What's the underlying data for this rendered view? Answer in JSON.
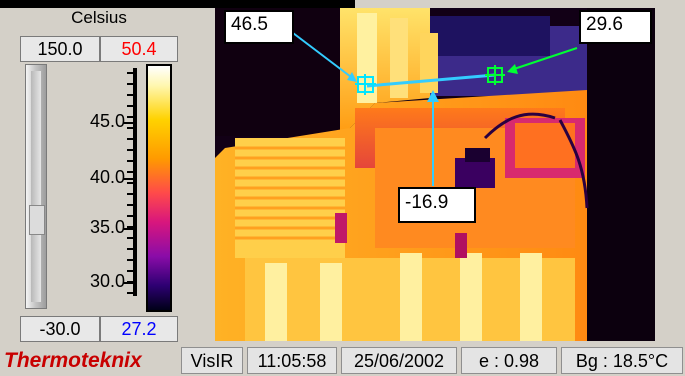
{
  "scale": {
    "unit": "Celsius",
    "max_value": "150.0",
    "current_max": "50.4",
    "min_value": "-30.0",
    "current_min": "27.2",
    "tick_labels": [
      "45.0",
      "40.0",
      "35.0",
      "30.0"
    ]
  },
  "measurements": {
    "spot1": "46.5",
    "spot2": "29.6",
    "line": "-16.9"
  },
  "status_bar": {
    "brand": "Thermoteknix",
    "mode": "VisIR",
    "time": "11:05:58",
    "date": "25/06/2002",
    "emissivity": "e : 0.98",
    "background": "Bg : 18.5°C"
  },
  "colors": {
    "max_text": "#ff0000",
    "min_text": "#0000ff",
    "marker_line": "#33ccff",
    "spot1_marker": "#00e5ff",
    "spot2_marker": "#00ff33",
    "brand": "#c80000"
  }
}
